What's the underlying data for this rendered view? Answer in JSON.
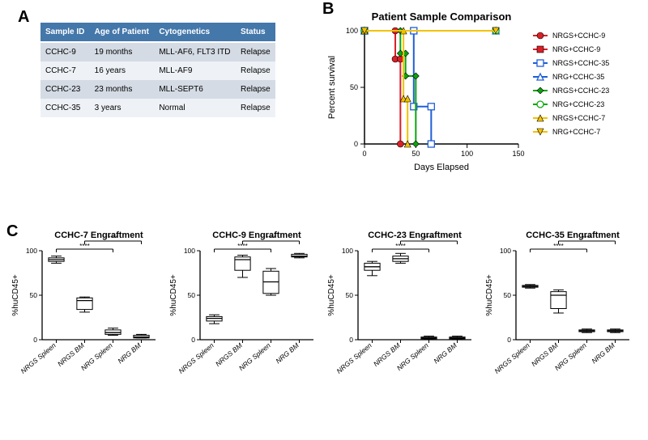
{
  "panel_labels": {
    "A": "A",
    "B": "B",
    "C": "C"
  },
  "tableA": {
    "headers": [
      "Sample ID",
      "Age of Patient",
      "Cytogenetics",
      "Status"
    ],
    "header_bg": "#4477aa",
    "header_fg": "#ffffff",
    "row_bg_odd": "#d4dbe4",
    "row_bg_even": "#eef2f6",
    "rows": [
      [
        "CCHC-9",
        "19 months",
        "MLL-AF6, FLT3 ITD",
        "Relapse"
      ],
      [
        "CCHC-7",
        "16 years",
        "MLL-AF9",
        "Relapse"
      ],
      [
        "CCHC-23",
        "23 months",
        "MLL-SEPT6",
        "Relapse"
      ],
      [
        "CCHC-35",
        "3 years",
        "Normal",
        "Relapse"
      ]
    ],
    "font_size": 10
  },
  "panelB": {
    "title": "Patient Sample Comparison",
    "title_fontsize": 13,
    "xlabel": "Days Elapsed",
    "ylabel": "Percent survival",
    "axis_fontsize": 11,
    "tick_fontsize": 9,
    "xlim": [
      0,
      150
    ],
    "xticks": [
      0,
      50,
      100,
      150
    ],
    "ylim": [
      0,
      100
    ],
    "yticks": [
      0,
      50,
      100
    ],
    "axis_color": "#000000",
    "background_color": "#ffffff",
    "line_width": 2,
    "marker_size": 4,
    "series": [
      {
        "name": "NRGS+CCHC-9",
        "color": "#d92027",
        "marker": "circle-filled",
        "points": [
          [
            0,
            100
          ],
          [
            30,
            100
          ],
          [
            30,
            75
          ],
          [
            35,
            75
          ],
          [
            35,
            0
          ]
        ]
      },
      {
        "name": "NRG+CCHC-9",
        "color": "#d92027",
        "marker": "square-filled",
        "points": [
          [
            0,
            100
          ],
          [
            128,
            100
          ]
        ]
      },
      {
        "name": "NRGS+CCHC-35",
        "color": "#1f5fd6",
        "marker": "square-open",
        "points": [
          [
            0,
            100
          ],
          [
            48,
            100
          ],
          [
            48,
            33
          ],
          [
            65,
            33
          ],
          [
            65,
            0
          ]
        ]
      },
      {
        "name": "NRG+CCHC-35",
        "color": "#1f5fd6",
        "marker": "triangle-open",
        "points": [
          [
            0,
            100
          ],
          [
            128,
            100
          ]
        ]
      },
      {
        "name": "NRGS+CCHC-23",
        "color": "#0aa60a",
        "marker": "diamond-filled",
        "points": [
          [
            0,
            100
          ],
          [
            35,
            100
          ],
          [
            35,
            80
          ],
          [
            40,
            80
          ],
          [
            40,
            60
          ],
          [
            50,
            60
          ],
          [
            50,
            0
          ]
        ]
      },
      {
        "name": "NRG+CCHC-23",
        "color": "#0aa60a",
        "marker": "circle-open",
        "points": [
          [
            0,
            100
          ],
          [
            128,
            100
          ]
        ]
      },
      {
        "name": "NRGS+CCHC-7",
        "color": "#f2c200",
        "marker": "triangle-filled",
        "points": [
          [
            0,
            100
          ],
          [
            38,
            100
          ],
          [
            38,
            40
          ],
          [
            42,
            40
          ],
          [
            42,
            0
          ]
        ]
      },
      {
        "name": "NRG+CCHC-7",
        "color": "#f2c200",
        "marker": "triangle-down",
        "points": [
          [
            0,
            100
          ],
          [
            128,
            100
          ]
        ]
      }
    ],
    "legend_fontsize": 9
  },
  "panelC": {
    "ylabel": "%huCD45+",
    "ylim": [
      0,
      100
    ],
    "yticks": [
      0,
      50,
      100
    ],
    "xcats": [
      "NRGS Spleen",
      "NRGS BM",
      "NRG Spleen",
      "NRG BM"
    ],
    "tick_fontsize": 8.5,
    "title_fontsize": 11,
    "axis_color": "#000000",
    "sig_label": "****",
    "box_fill": "#ffffff",
    "box_stroke": "#000000",
    "box_width": 0.55,
    "plots": [
      {
        "title": "CCHC-7 Engraftment",
        "boxes": [
          {
            "min": 86,
            "q1": 88,
            "med": 90,
            "q3": 92,
            "max": 94
          },
          {
            "min": 31,
            "q1": 34,
            "med": 44,
            "q3": 47,
            "max": 48
          },
          {
            "min": 5,
            "q1": 6,
            "med": 8,
            "q3": 11,
            "max": 13
          },
          {
            "min": 2,
            "q1": 2,
            "med": 3,
            "q3": 5,
            "max": 6
          }
        ],
        "sig_pairs": [
          [
            0,
            2
          ],
          [
            1,
            3
          ]
        ]
      },
      {
        "title": "CCHC-9 Engraftment",
        "boxes": [
          {
            "min": 18,
            "q1": 21,
            "med": 24,
            "q3": 26,
            "max": 28
          },
          {
            "min": 70,
            "q1": 78,
            "med": 90,
            "q3": 93,
            "max": 95
          },
          {
            "min": 50,
            "q1": 52,
            "med": 65,
            "q3": 77,
            "max": 80
          },
          {
            "min": 92,
            "q1": 93,
            "med": 94,
            "q3": 96,
            "max": 97
          }
        ],
        "sig_pairs": [
          [
            0,
            2
          ],
          [
            1,
            3
          ]
        ]
      },
      {
        "title": "CCHC-23 Engraftment",
        "boxes": [
          {
            "min": 72,
            "q1": 78,
            "med": 82,
            "q3": 86,
            "max": 88
          },
          {
            "min": 86,
            "q1": 88,
            "med": 91,
            "q3": 94,
            "max": 97
          },
          {
            "min": 1,
            "q1": 1,
            "med": 2,
            "q3": 3,
            "max": 4
          },
          {
            "min": 1,
            "q1": 1,
            "med": 2,
            "q3": 3,
            "max": 4
          }
        ],
        "sig_pairs": [
          [
            0,
            2
          ],
          [
            1,
            3
          ]
        ]
      },
      {
        "title": "CCHC-35 Engraftment",
        "boxes": [
          {
            "min": 58,
            "q1": 59,
            "med": 60,
            "q3": 61,
            "max": 62
          },
          {
            "min": 30,
            "q1": 35,
            "med": 50,
            "q3": 54,
            "max": 56
          },
          {
            "min": 8,
            "q1": 9,
            "med": 10,
            "q3": 11,
            "max": 12
          },
          {
            "min": 8,
            "q1": 9,
            "med": 10,
            "q3": 11,
            "max": 12
          }
        ],
        "sig_pairs": [
          [
            0,
            2
          ],
          [
            1,
            3
          ]
        ]
      }
    ]
  }
}
